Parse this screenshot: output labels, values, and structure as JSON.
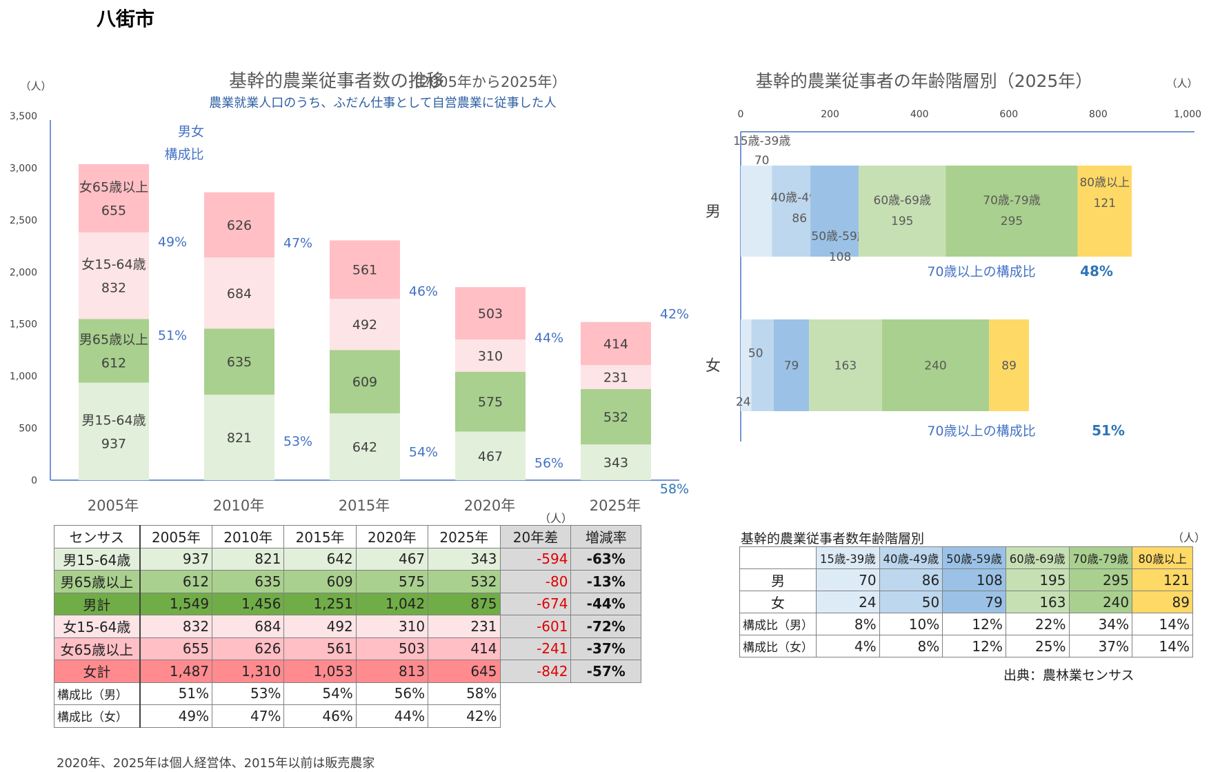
{
  "page_title": "八街市",
  "chart_data": [
    {
      "type": "bar",
      "stacked": true,
      "title": "基幹的農業従事者数の推移",
      "title_suffix": "（2005年から2025年）",
      "subtitle": "農業就業人口のうち、ふだん仕事として自営農業に従事した人",
      "ylabel": "（人）",
      "ylim": [
        0,
        3500
      ],
      "yticks": [
        0,
        500,
        1000,
        1500,
        2000,
        2500,
        3000,
        3500
      ],
      "ytick_labels": [
        "0",
        "500",
        "1,000",
        "1,500",
        "2,000",
        "2,500",
        "3,000",
        "3,500"
      ],
      "categories": [
        "2005年",
        "2010年",
        "2015年",
        "2020年",
        "2025年"
      ],
      "series": [
        {
          "name": "男15-64歳",
          "color": "#e2efda",
          "values": [
            937,
            821,
            642,
            467,
            343
          ]
        },
        {
          "name": "男65歳以上",
          "color": "#a9d08e",
          "values": [
            612,
            635,
            609,
            575,
            532
          ]
        },
        {
          "name": "女15-64歳",
          "color": "#fde4e6",
          "values": [
            832,
            684,
            492,
            310,
            231
          ]
        },
        {
          "name": "女65歳以上",
          "color": "#ffbfc5",
          "values": [
            655,
            626,
            561,
            503,
            414
          ]
        }
      ],
      "ratio_label": "男女\n構成比",
      "ratio_male": [
        "51%",
        "53%",
        "54%",
        "56%",
        "58%"
      ],
      "ratio_female": [
        "49%",
        "47%",
        "46%",
        "44%",
        "42%"
      ],
      "grid": false
    },
    {
      "type": "bar",
      "orientation": "horizontal",
      "stacked": true,
      "title": "基幹的農業従事者の年齢階層別（2025年）",
      "xlabel": "（人）",
      "xlim": [
        0,
        1000
      ],
      "xticks": [
        0,
        200,
        400,
        600,
        800,
        1000
      ],
      "xtick_labels": [
        "0",
        "200",
        "400",
        "600",
        "800",
        "1,000"
      ],
      "categories": [
        "男",
        "女"
      ],
      "series": [
        {
          "name": "15歳-39歳",
          "color": "#ddebf7",
          "values": [
            70,
            24
          ]
        },
        {
          "name": "40歳-49歳",
          "color": "#bdd7ee",
          "values": [
            86,
            50
          ]
        },
        {
          "name": "50歳-59歳",
          "color": "#9bc2e6",
          "values": [
            108,
            79
          ]
        },
        {
          "name": "60歳-69歳",
          "color": "#c6e0b4",
          "values": [
            195,
            163
          ]
        },
        {
          "name": "70歳-79歳",
          "color": "#a9d08e",
          "values": [
            295,
            240
          ]
        },
        {
          "name": "80歳以上",
          "color": "#ffd966",
          "values": [
            121,
            89
          ]
        }
      ],
      "over70_label": "70歳以上の構成比",
      "over70_ratio": [
        "48%",
        "51%"
      ],
      "grid": false
    }
  ],
  "main_table": {
    "unit": "（人）",
    "header": [
      "センサス",
      "2005年",
      "2010年",
      "2015年",
      "2020年",
      "2025年",
      "20年差",
      "増減率"
    ],
    "rows": [
      {
        "label": "男15-64歳",
        "values": [
          "937",
          "821",
          "642",
          "467",
          "343"
        ],
        "diff": "-594",
        "rate": "-63%",
        "bg": "#e2efda"
      },
      {
        "label": "男65歳以上",
        "values": [
          "612",
          "635",
          "609",
          "575",
          "532"
        ],
        "diff": "-80",
        "rate": "-13%",
        "bg": "#a9d08e"
      },
      {
        "label": "男計",
        "values": [
          "1,549",
          "1,456",
          "1,251",
          "1,042",
          "875"
        ],
        "diff": "-674",
        "rate": "-44%",
        "bg": "#70ad47"
      },
      {
        "label": "女15-64歳",
        "values": [
          "832",
          "684",
          "492",
          "310",
          "231"
        ],
        "diff": "-601",
        "rate": "-72%",
        "bg": "#fde4e6"
      },
      {
        "label": "女65歳以上",
        "values": [
          "655",
          "626",
          "561",
          "503",
          "414"
        ],
        "diff": "-241",
        "rate": "-37%",
        "bg": "#ffbfc5"
      },
      {
        "label": "女計",
        "values": [
          "1,487",
          "1,310",
          "1,053",
          "813",
          "645"
        ],
        "diff": "-842",
        "rate": "-57%",
        "bg": "#ff8b8f"
      }
    ],
    "ratio_rows": [
      {
        "label": "構成比（男）",
        "values": [
          "51%",
          "53%",
          "54%",
          "56%",
          "58%"
        ]
      },
      {
        "label": "構成比（女）",
        "values": [
          "49%",
          "47%",
          "46%",
          "44%",
          "42%"
        ]
      }
    ]
  },
  "age_table": {
    "title": "基幹的農業従事者数年齢階層別",
    "unit": "（人）",
    "header": [
      "",
      "15歳-39歳",
      "40歳-49歳",
      "50歳-59歳",
      "60歳-69歳",
      "70歳-79歳",
      "80歳以上"
    ],
    "header_colors": [
      "#ffffff",
      "#ddebf7",
      "#bdd7ee",
      "#9bc2e6",
      "#c6e0b4",
      "#a9d08e",
      "#ffd966"
    ],
    "rows": [
      {
        "label": "男",
        "values": [
          "70",
          "86",
          "108",
          "195",
          "295",
          "121"
        ]
      },
      {
        "label": "女",
        "values": [
          "24",
          "50",
          "79",
          "163",
          "240",
          "89"
        ]
      }
    ],
    "ratio_rows": [
      {
        "label": "構成比（男）",
        "values": [
          "8%",
          "10%",
          "12%",
          "22%",
          "34%",
          "14%"
        ]
      },
      {
        "label": "構成比（女）",
        "values": [
          "4%",
          "8%",
          "12%",
          "25%",
          "37%",
          "14%"
        ]
      }
    ]
  },
  "source": "出典：農林業センサス",
  "footnote": "2020年、2025年は個人経営体、2015年以前は販売農家"
}
